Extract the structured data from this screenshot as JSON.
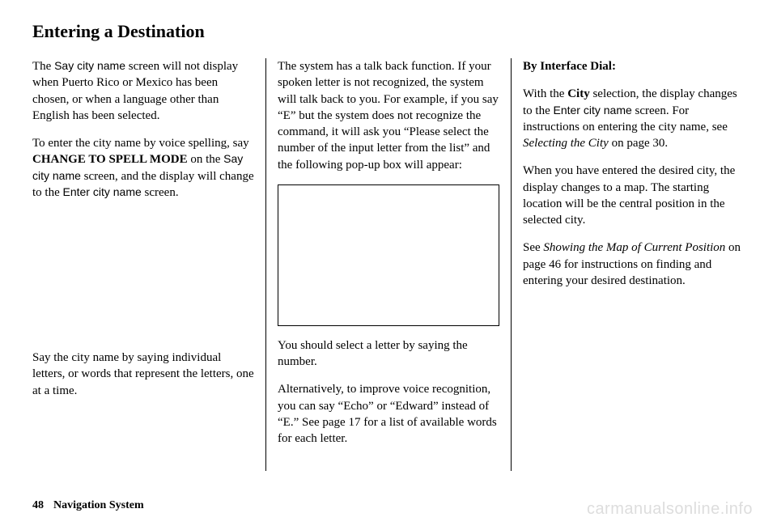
{
  "title": "Entering a Destination",
  "col1": {
    "p1a": "The ",
    "p1b": "Say city name",
    "p1c": " screen will not display when Puerto Rico or Mexico has been chosen, or when a language other than English has been selected.",
    "p2a": "To enter the city name by voice spelling, say ",
    "p2b": "CHANGE TO SPELL MODE",
    "p2c": " on the ",
    "p2d": "Say city name",
    "p2e": " screen, and the display will change to the ",
    "p2f": "Enter city name",
    "p2g": " screen.",
    "p3": "Say the city name by saying individual letters, or words that represent the letters, one at a time."
  },
  "col2": {
    "p1": "The system has a talk back function. If your spoken letter is not recognized, the system will talk back to you. For example, if you say “E” but the system does not recognize the command, it will ask you “Please select the number of the input letter from the list” and the following pop-up box will appear:",
    "p2": "You should select a letter by saying the number.",
    "p3": "Alternatively, to improve voice recognition, you can say “Echo” or “Edward” instead of “E.” See page 17 for a list of available words for each letter."
  },
  "col3": {
    "h1": "By Interface Dial:",
    "p1a": "With the ",
    "p1b": "City",
    "p1c": " selection, the display changes to the ",
    "p1d": "Enter city name",
    "p1e": " screen. For instructions on entering the city name, see ",
    "p1f": "Selecting the City",
    "p1g": " on page 30.",
    "p2": "When you have entered the desired city, the display changes to a map. The starting location will be the central position in the selected city.",
    "p3a": "See ",
    "p3b": "Showing the Map of Current Position",
    "p3c": " on page 46 for instructions on finding and entering your desired destination."
  },
  "footer": {
    "page": "48",
    "section": "Navigation System"
  },
  "watermark": "carmanualsonline.info"
}
